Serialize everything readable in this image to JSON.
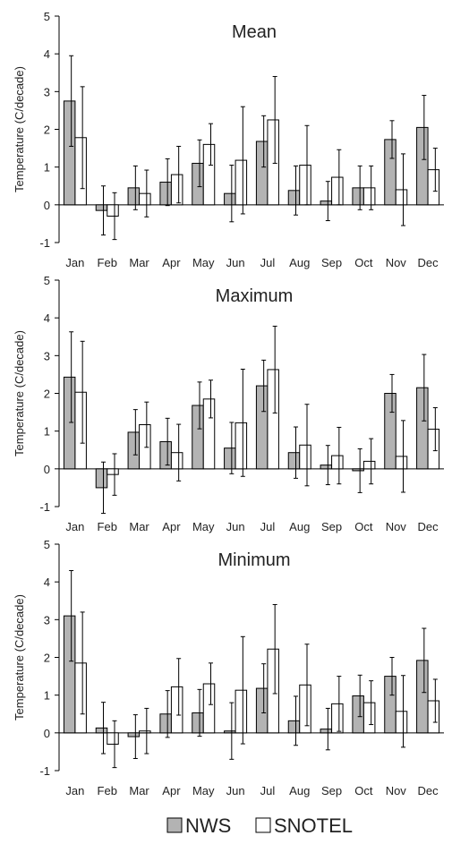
{
  "legend": {
    "entries": [
      {
        "name": "NWS",
        "color": "#b3b3b3"
      },
      {
        "name": "SNOTEL",
        "color": "#ffffff"
      }
    ]
  },
  "chart_data": [
    {
      "type": "bar",
      "title": "Mean",
      "ylabel": "Temperature (C/decade)",
      "ylim": [
        -1,
        5
      ],
      "yticks": [
        -1,
        0,
        1,
        2,
        3,
        4,
        5
      ],
      "categories": [
        "Jan",
        "Feb",
        "Mar",
        "Apr",
        "May",
        "Jun",
        "Jul",
        "Aug",
        "Sep",
        "Oct",
        "Nov",
        "Dec"
      ],
      "series": [
        {
          "name": "NWS",
          "color": "#b3b3b3",
          "values": [
            2.75,
            -0.15,
            0.45,
            0.6,
            1.1,
            0.3,
            1.68,
            0.38,
            0.1,
            0.45,
            1.73,
            2.05
          ],
          "error": [
            1.2,
            0.65,
            0.58,
            0.62,
            0.62,
            0.75,
            0.68,
            0.65,
            0.52,
            0.58,
            0.5,
            0.85
          ]
        },
        {
          "name": "SNOTEL",
          "color": "#ffffff",
          "values": [
            1.78,
            -0.3,
            0.3,
            0.8,
            1.6,
            1.18,
            2.25,
            1.05,
            0.73,
            0.45,
            0.4,
            0.93
          ],
          "error": [
            1.35,
            0.62,
            0.62,
            0.75,
            0.55,
            1.42,
            1.15,
            1.05,
            0.73,
            0.58,
            0.95,
            0.57
          ]
        }
      ]
    },
    {
      "type": "bar",
      "title": "Maximum",
      "ylabel": "Temperature (C/decade)",
      "ylim": [
        -1,
        5
      ],
      "yticks": [
        -1,
        0,
        1,
        2,
        3,
        4,
        5
      ],
      "categories": [
        "Jan",
        "Feb",
        "Mar",
        "Apr",
        "May",
        "Jun",
        "Jul",
        "Aug",
        "Sep",
        "Oct",
        "Nov",
        "Dec"
      ],
      "series": [
        {
          "name": "NWS",
          "color": "#b3b3b3",
          "values": [
            2.43,
            -0.5,
            0.97,
            0.72,
            1.68,
            0.55,
            2.2,
            0.43,
            0.1,
            -0.05,
            2.0,
            2.15
          ],
          "error": [
            1.2,
            0.68,
            0.6,
            0.62,
            0.62,
            0.68,
            0.68,
            0.68,
            0.52,
            0.58,
            0.5,
            0.88
          ]
        },
        {
          "name": "SNOTEL",
          "color": "#ffffff",
          "values": [
            2.03,
            -0.15,
            1.17,
            0.43,
            1.85,
            1.22,
            2.63,
            0.63,
            0.35,
            0.2,
            0.33,
            1.05
          ],
          "error": [
            1.35,
            0.55,
            0.6,
            0.75,
            0.5,
            1.42,
            1.15,
            1.08,
            0.75,
            0.6,
            0.95,
            0.57
          ]
        }
      ]
    },
    {
      "type": "bar",
      "title": "Minimum",
      "ylabel": "Temperature (C/decade)",
      "ylim": [
        -1,
        5
      ],
      "yticks": [
        -1,
        0,
        1,
        2,
        3,
        4,
        5
      ],
      "categories": [
        "Jan",
        "Feb",
        "Mar",
        "Apr",
        "May",
        "Jun",
        "Jul",
        "Aug",
        "Sep",
        "Oct",
        "Nov",
        "Dec"
      ],
      "series": [
        {
          "name": "NWS",
          "color": "#b3b3b3",
          "values": [
            3.1,
            0.13,
            -0.1,
            0.5,
            0.53,
            0.05,
            1.18,
            0.32,
            0.1,
            0.98,
            1.5,
            1.92
          ],
          "error": [
            1.2,
            0.68,
            0.58,
            0.62,
            0.62,
            0.75,
            0.65,
            0.65,
            0.55,
            0.55,
            0.5,
            0.85
          ]
        },
        {
          "name": "SNOTEL",
          "color": "#ffffff",
          "values": [
            1.85,
            -0.3,
            0.05,
            1.22,
            1.3,
            1.13,
            2.22,
            1.27,
            0.77,
            0.8,
            0.57,
            0.85
          ],
          "error": [
            1.35,
            0.62,
            0.6,
            0.75,
            0.55,
            1.42,
            1.18,
            1.08,
            0.73,
            0.58,
            0.95,
            0.57
          ]
        }
      ]
    }
  ]
}
